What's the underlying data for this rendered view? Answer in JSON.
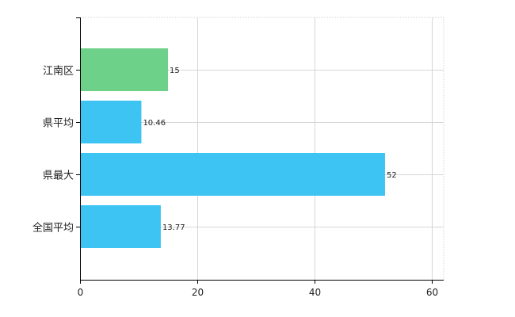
{
  "chart_data": {
    "type": "bar",
    "orientation": "horizontal",
    "categories": [
      "江南区",
      "県平均",
      "県最大",
      "全国平均"
    ],
    "values": [
      15,
      10.46,
      52,
      13.77
    ],
    "value_labels": [
      "15",
      "10.46",
      "52",
      "13.77"
    ],
    "bar_colors": [
      "#6ed18a",
      "#3ec4f3",
      "#3ec4f3",
      "#3ec4f3"
    ],
    "xlim": [
      0,
      62
    ],
    "x_ticks": [
      0,
      20,
      40,
      60
    ],
    "x_tick_labels": [
      "0",
      "20",
      "40",
      "60"
    ],
    "grid": true,
    "grid_color": "#d6d6d6",
    "axis_color": "#000000"
  }
}
